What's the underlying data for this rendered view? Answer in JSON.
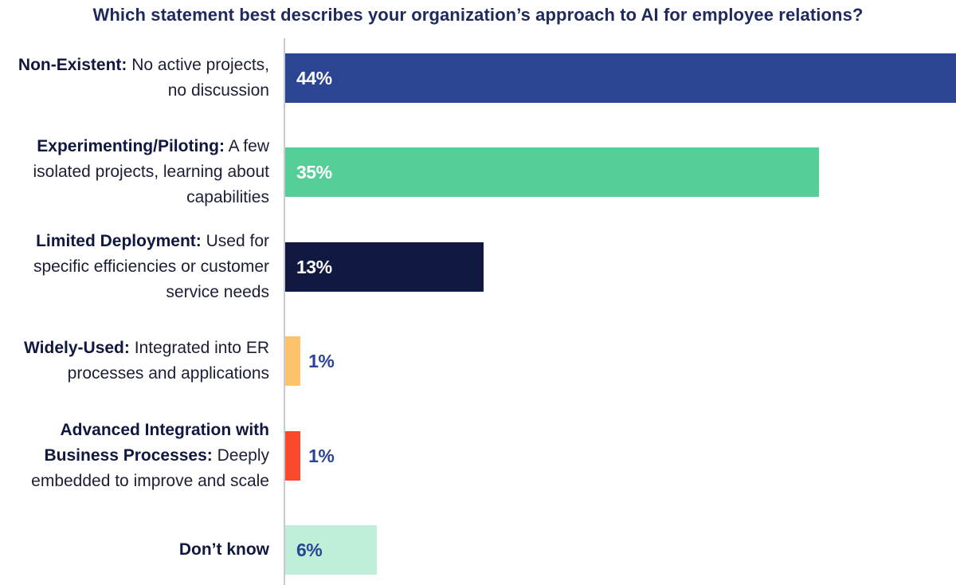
{
  "chart_data": {
    "type": "bar",
    "orientation": "horizontal",
    "title": "Which statement best describes your organization’s approach to AI for employee relations?",
    "xlabel": "",
    "ylabel": "",
    "xlim": [
      0,
      44
    ],
    "value_suffix": "%",
    "categories": [
      {
        "bold": "Non-Existent:",
        "text": " No active projects, no discussion"
      },
      {
        "bold": "Experimenting/Piloting:",
        "text": " A few isolated projects, learning about capabilities"
      },
      {
        "bold": "Limited Deployment:",
        "text": " Used for specific efficiencies or customer service needs"
      },
      {
        "bold": "Widely-Used:",
        "text": " Integrated into ER processes and applications"
      },
      {
        "bold": "Advanced Integration with Business Processes:",
        "text": " Deeply embedded to improve and scale"
      },
      {
        "bold": "Don’t know",
        "text": ""
      }
    ],
    "values": [
      44,
      35,
      13,
      1,
      1,
      6
    ],
    "bar_colors": [
      "#2b4593",
      "#56ce98",
      "#111841",
      "#ffc36b",
      "#fa4a2b",
      "#bfefd9"
    ],
    "label_colors": [
      "#ffffff",
      "#ffffff",
      "#ffffff",
      "#2b4593",
      "#2b4593",
      "#2b4593"
    ]
  }
}
